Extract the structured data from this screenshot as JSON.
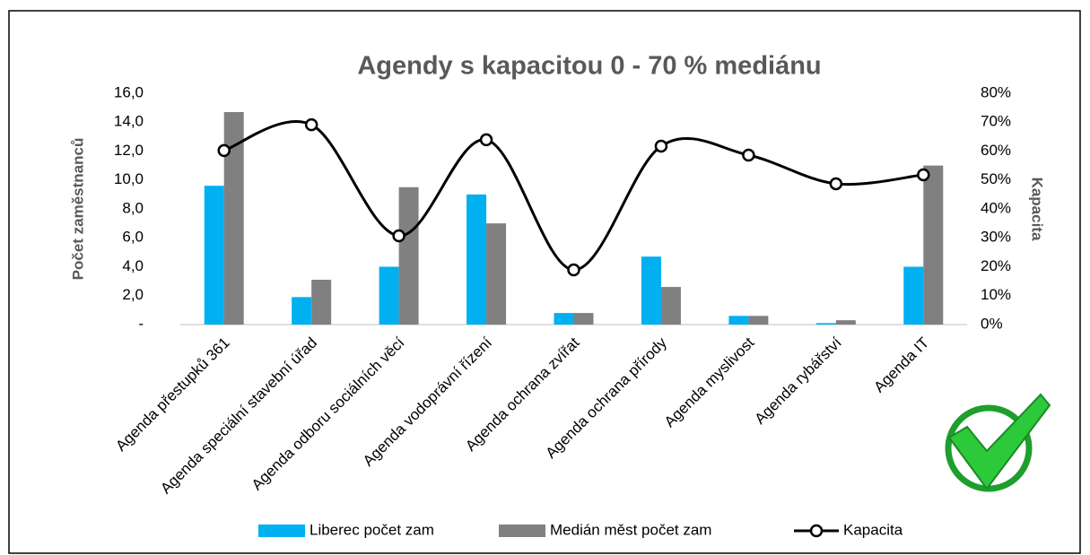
{
  "chart_data": {
    "type": "bar_line",
    "title": "Agendy s kapacitou 0 - 70 % mediánu",
    "ylabel": "Počet zaměstnanců",
    "y2label": "Kapacita",
    "categories": [
      "Agenda přestupků 361",
      "Agenda speciální stavební úřad",
      "Agenda odboru sociálních věcí",
      "Agenda vodoprávní řízení",
      "Agenda ochrana zvířat",
      "Agenda ochrana přírody",
      "Agenda myslivost",
      "Agenda rybářství",
      "Agenda IT"
    ],
    "series": [
      {
        "name": "Liberec počet zam",
        "type": "bar",
        "color": "#00b0f0",
        "values": [
          9.6,
          1.9,
          4.0,
          9.0,
          0.8,
          4.7,
          0.6,
          0.1,
          4.0
        ]
      },
      {
        "name": "Medián měst počet zam",
        "type": "bar",
        "color": "#808080",
        "values": [
          14.7,
          3.1,
          9.5,
          7.0,
          0.8,
          2.6,
          0.6,
          0.3,
          11.0
        ]
      },
      {
        "name": "Kapacita",
        "type": "line",
        "axis": "y2",
        "color": "#000000",
        "values": [
          60.2,
          69.1,
          30.7,
          63.9,
          18.9,
          61.7,
          58.6,
          48.7,
          51.8
        ]
      }
    ],
    "ylim": [
      0,
      16
    ],
    "yticks": [
      {
        "value": 0,
        "label": "-"
      },
      {
        "value": 2,
        "label": "2,0"
      },
      {
        "value": 4,
        "label": "4,0"
      },
      {
        "value": 6,
        "label": "6,0"
      },
      {
        "value": 8,
        "label": "8,0"
      },
      {
        "value": 10,
        "label": "10,0"
      },
      {
        "value": 12,
        "label": "12,0"
      },
      {
        "value": 14,
        "label": "14,0"
      },
      {
        "value": 16,
        "label": "16,0"
      }
    ],
    "y2lim": [
      0,
      80
    ],
    "y2ticks": [
      {
        "value": 0,
        "label": "0%"
      },
      {
        "value": 10,
        "label": "10%"
      },
      {
        "value": 20,
        "label": "20%"
      },
      {
        "value": 30,
        "label": "30%"
      },
      {
        "value": 40,
        "label": "40%"
      },
      {
        "value": 50,
        "label": "50%"
      },
      {
        "value": 60,
        "label": "60%"
      },
      {
        "value": 70,
        "label": "70%"
      },
      {
        "value": 80,
        "label": "80%"
      }
    ],
    "grid": false,
    "legend": "bottom"
  }
}
